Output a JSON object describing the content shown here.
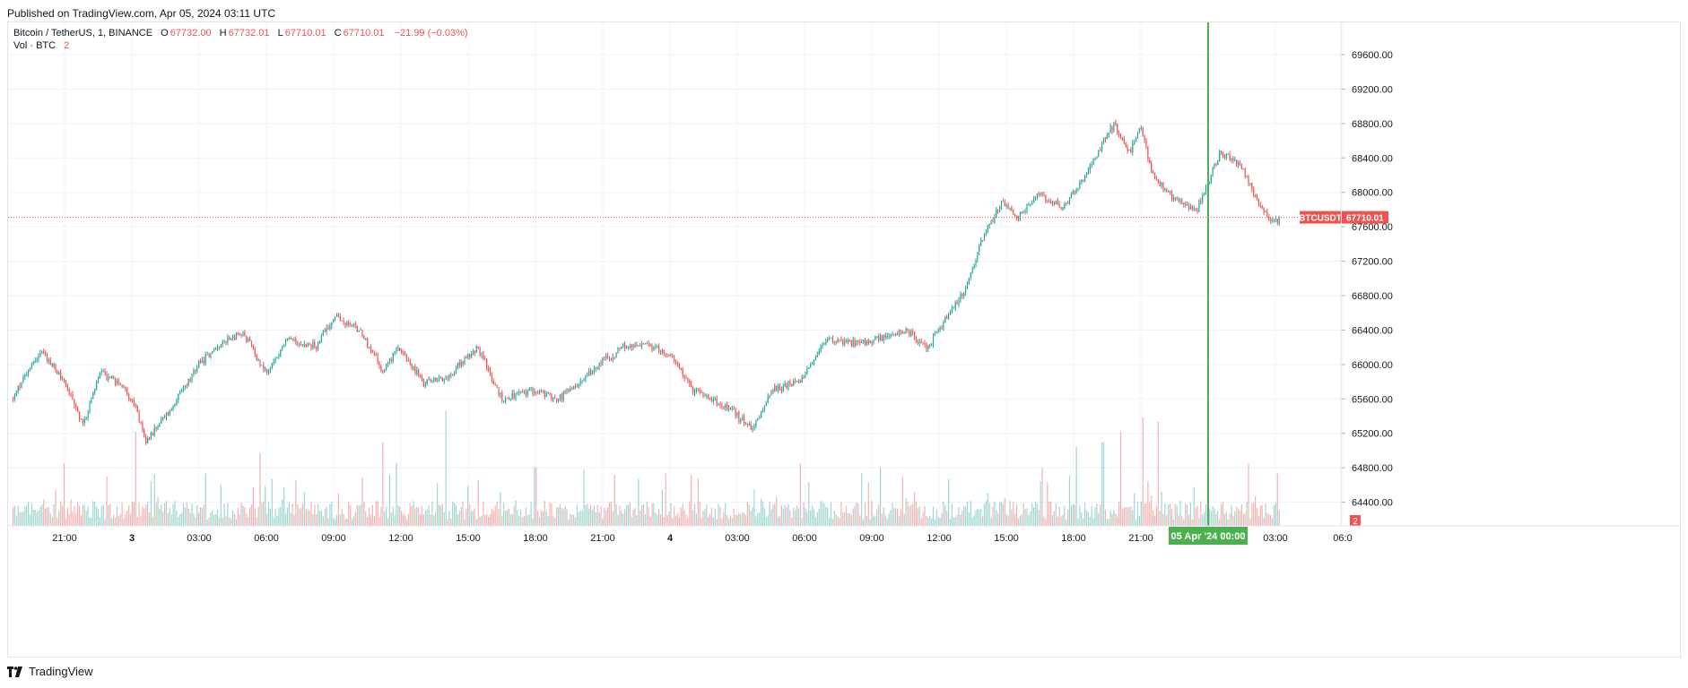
{
  "published": "Published on TradingView.com, Apr 05, 2024 03:11 UTC",
  "footer": {
    "brand": "TradingView"
  },
  "legend": {
    "symbol": "Bitcoin / TetherUS, 1, BINANCE",
    "o_label": "O",
    "o_value": "67732.00",
    "h_label": "H",
    "h_value": "67732.01",
    "l_label": "L",
    "l_value": "67710.01",
    "c_label": "C",
    "c_value": "67710.01",
    "change": "−21.99 (−0.03%)",
    "vol_label": "Vol · BTC",
    "vol_value": "2"
  },
  "colors": {
    "up": "#26a69a",
    "down": "#ef5350",
    "grid": "#f0f3fa",
    "crosshair": "#4caf50",
    "price_line": "#ef5350"
  },
  "chart_data": {
    "type": "candlestick",
    "symbol_tag": "BTCUSDT",
    "last_price": "67710.01",
    "volume_badge": "2",
    "crosshair_label": "05 Apr '24   00:00",
    "y_ticks": [
      "64400.00",
      "64800.00",
      "65200.00",
      "65600.00",
      "66000.00",
      "66400.00",
      "66800.00",
      "67200.00",
      "67600.00",
      "68000.00",
      "68400.00",
      "68800.00",
      "69200.00",
      "69600.00"
    ],
    "ylim": [
      64000,
      69850
    ],
    "x_ticks": [
      "21:00",
      "3",
      "03:00",
      "06:00",
      "09:00",
      "12:00",
      "15:00",
      "18:00",
      "21:00",
      "4",
      "03:00",
      "06:00",
      "09:00",
      "12:00",
      "15:00",
      "18:00",
      "21:00",
      "05 Apr '24",
      "03:00",
      "06:0"
    ],
    "x_tick_hours": [
      0,
      3,
      6,
      9,
      12,
      15,
      18,
      21,
      24,
      27,
      30,
      33,
      36,
      39,
      42,
      45,
      48,
      51,
      54,
      57
    ],
    "x_start_hours": -2.3,
    "price_path_hours": [
      -2.3,
      -1.5,
      -1.0,
      0,
      0.8,
      1.6,
      2.4,
      3.2,
      3.6,
      4.8,
      6.0,
      7.2,
      8.0,
      9.0,
      10.0,
      11.2,
      12.0,
      13.2,
      14.2,
      14.8,
      16.0,
      17.0,
      18.4,
      19.5,
      21.0,
      22.0,
      23.0,
      24.0,
      25.0,
      26.0,
      27.2,
      28.0,
      29.5,
      30.7,
      31.6,
      32.8,
      34.0,
      35.0,
      36.5,
      37.5,
      38.5,
      39.5,
      40.2,
      41.0,
      41.8,
      42.5,
      43.5,
      44.5,
      45.5,
      46.8,
      47.5,
      48.0,
      48.5,
      49.6,
      50.5,
      51.5,
      52.4,
      53.2,
      53.8,
      54.2
    ],
    "price_path": [
      65600,
      66000,
      66150,
      65800,
      65300,
      65900,
      65800,
      65500,
      65100,
      65500,
      66000,
      66300,
      66350,
      65900,
      66300,
      66200,
      66550,
      66400,
      65900,
      66200,
      65800,
      65850,
      66200,
      65600,
      65700,
      65600,
      65800,
      66050,
      66200,
      66250,
      66050,
      65700,
      65500,
      65250,
      65700,
      65800,
      66300,
      66250,
      66300,
      66400,
      66200,
      66600,
      66900,
      67500,
      67900,
      67700,
      68000,
      67800,
      68200,
      68800,
      68450,
      68800,
      68200,
      67900,
      67800,
      68450,
      68350,
      67900,
      67650,
      67710
    ],
    "volume_ylim": [
      0,
      60
    ],
    "volume_spikes_hours": [
      0,
      3.2,
      6.3,
      8.7,
      14.2,
      14.8,
      17.0,
      21.0,
      32.8,
      36.4,
      43.6,
      45.1,
      46.3,
      47.1,
      48.1,
      48.8,
      52.8,
      54.1
    ],
    "volume_spikes": [
      30,
      45,
      25,
      35,
      40,
      30,
      55,
      28,
      30,
      28,
      28,
      38,
      40,
      45,
      52,
      50,
      30,
      25
    ]
  }
}
